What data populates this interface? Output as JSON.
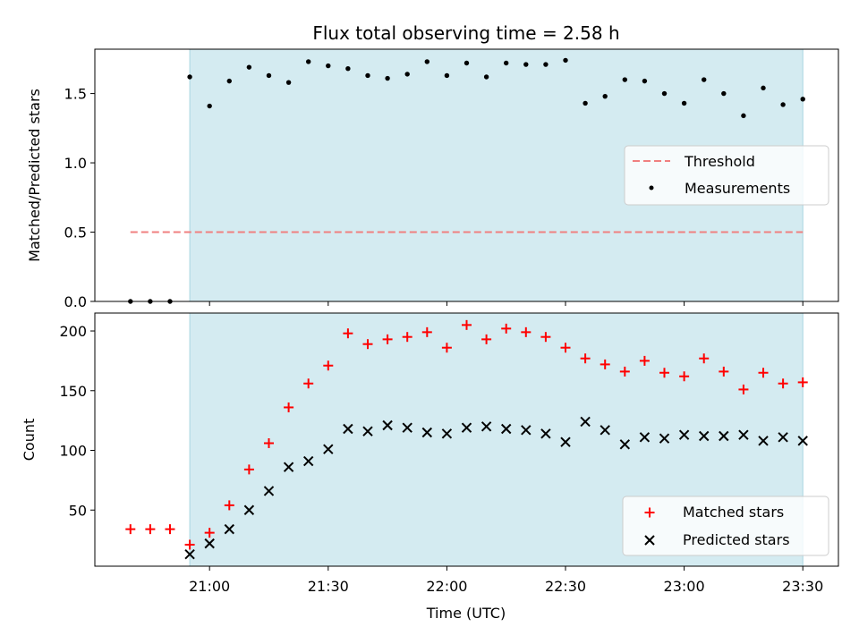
{
  "title": "Flux total observing time = 2.58 h",
  "xlabel": "Time (UTC)",
  "colors": {
    "shade": "#d4ebf1",
    "shade_edge": "#a9d6e1",
    "threshold": "#f08080",
    "measurement": "#000000",
    "matched": "#ff0000",
    "predicted": "#000000"
  },
  "chart_data": [
    {
      "type": "scatter",
      "panel": "top",
      "ylabel": "Matched/Predicted stars",
      "xlim": [
        "20:31",
        "23:39"
      ],
      "ylim": [
        0,
        1.82
      ],
      "x_ticks": [
        "21:00",
        "21:30",
        "22:00",
        "22:30",
        "23:00",
        "23:30"
      ],
      "y_ticks": [
        "0.0",
        "0.5",
        "1.0",
        "1.5"
      ],
      "y_tick_values": [
        0,
        0.5,
        1.0,
        1.5
      ],
      "shaded_interval": [
        "20:55",
        "23:30"
      ],
      "legend_position": "center-right",
      "threshold": {
        "name": "Threshold",
        "value": 0.5,
        "x_range": [
          "20:40",
          "23:30"
        ]
      },
      "series": [
        {
          "name": "Measurements",
          "marker": "dot",
          "x": [
            "20:40",
            "20:45",
            "20:50",
            "20:55",
            "21:00",
            "21:05",
            "21:10",
            "21:15",
            "21:20",
            "21:25",
            "21:30",
            "21:35",
            "21:40",
            "21:45",
            "21:50",
            "21:55",
            "22:00",
            "22:05",
            "22:10",
            "22:15",
            "22:20",
            "22:25",
            "22:30",
            "22:35",
            "22:40",
            "22:45",
            "22:50",
            "22:55",
            "23:00",
            "23:05",
            "23:10",
            "23:15",
            "23:20",
            "23:25",
            "23:30"
          ],
          "values": [
            0.0,
            0.0,
            0.0,
            1.62,
            1.41,
            1.59,
            1.69,
            1.63,
            1.58,
            1.73,
            1.7,
            1.68,
            1.63,
            1.61,
            1.64,
            1.73,
            1.63,
            1.72,
            1.62,
            1.72,
            1.71,
            1.71,
            1.74,
            1.43,
            1.48,
            1.6,
            1.59,
            1.5,
            1.43,
            1.6,
            1.5,
            1.34,
            1.54,
            1.42,
            1.46
          ]
        }
      ]
    },
    {
      "type": "scatter",
      "panel": "bottom",
      "ylabel": "Count",
      "xlim": [
        "20:31",
        "23:39"
      ],
      "ylim": [
        3,
        215
      ],
      "x_ticks": [
        "21:00",
        "21:30",
        "22:00",
        "22:30",
        "23:00",
        "23:30"
      ],
      "y_ticks": [
        "50",
        "100",
        "150",
        "200"
      ],
      "y_tick_values": [
        50,
        100,
        150,
        200
      ],
      "shaded_interval": [
        "20:55",
        "23:30"
      ],
      "legend_position": "lower-right",
      "series": [
        {
          "name": "Matched stars",
          "marker": "plus",
          "x": [
            "20:40",
            "20:45",
            "20:50",
            "20:55",
            "21:00",
            "21:05",
            "21:10",
            "21:15",
            "21:20",
            "21:25",
            "21:30",
            "21:35",
            "21:40",
            "21:45",
            "21:50",
            "21:55",
            "22:00",
            "22:05",
            "22:10",
            "22:15",
            "22:20",
            "22:25",
            "22:30",
            "22:35",
            "22:40",
            "22:45",
            "22:50",
            "22:55",
            "23:00",
            "23:05",
            "23:10",
            "23:15",
            "23:20",
            "23:25",
            "23:30"
          ],
          "values": [
            34,
            34,
            34,
            21,
            31,
            54,
            84,
            106,
            136,
            156,
            171,
            198,
            189,
            193,
            195,
            199,
            186,
            205,
            193,
            202,
            199,
            195,
            186,
            177,
            172,
            166,
            175,
            165,
            162,
            177,
            166,
            151,
            165,
            156,
            157
          ]
        },
        {
          "name": "Predicted stars",
          "marker": "x",
          "x": [
            "20:55",
            "21:00",
            "21:05",
            "21:10",
            "21:15",
            "21:20",
            "21:25",
            "21:30",
            "21:35",
            "21:40",
            "21:45",
            "21:50",
            "21:55",
            "22:00",
            "22:05",
            "22:10",
            "22:15",
            "22:20",
            "22:25",
            "22:30",
            "22:35",
            "22:40",
            "22:45",
            "22:50",
            "22:55",
            "23:00",
            "23:05",
            "23:10",
            "23:15",
            "23:20",
            "23:25",
            "23:30"
          ],
          "values": [
            13,
            22,
            34,
            50,
            66,
            86,
            91,
            101,
            118,
            116,
            121,
            119,
            115,
            114,
            119,
            120,
            118,
            117,
            114,
            107,
            124,
            117,
            105,
            111,
            110,
            113,
            112,
            112,
            113,
            108,
            111,
            108
          ]
        }
      ]
    }
  ]
}
